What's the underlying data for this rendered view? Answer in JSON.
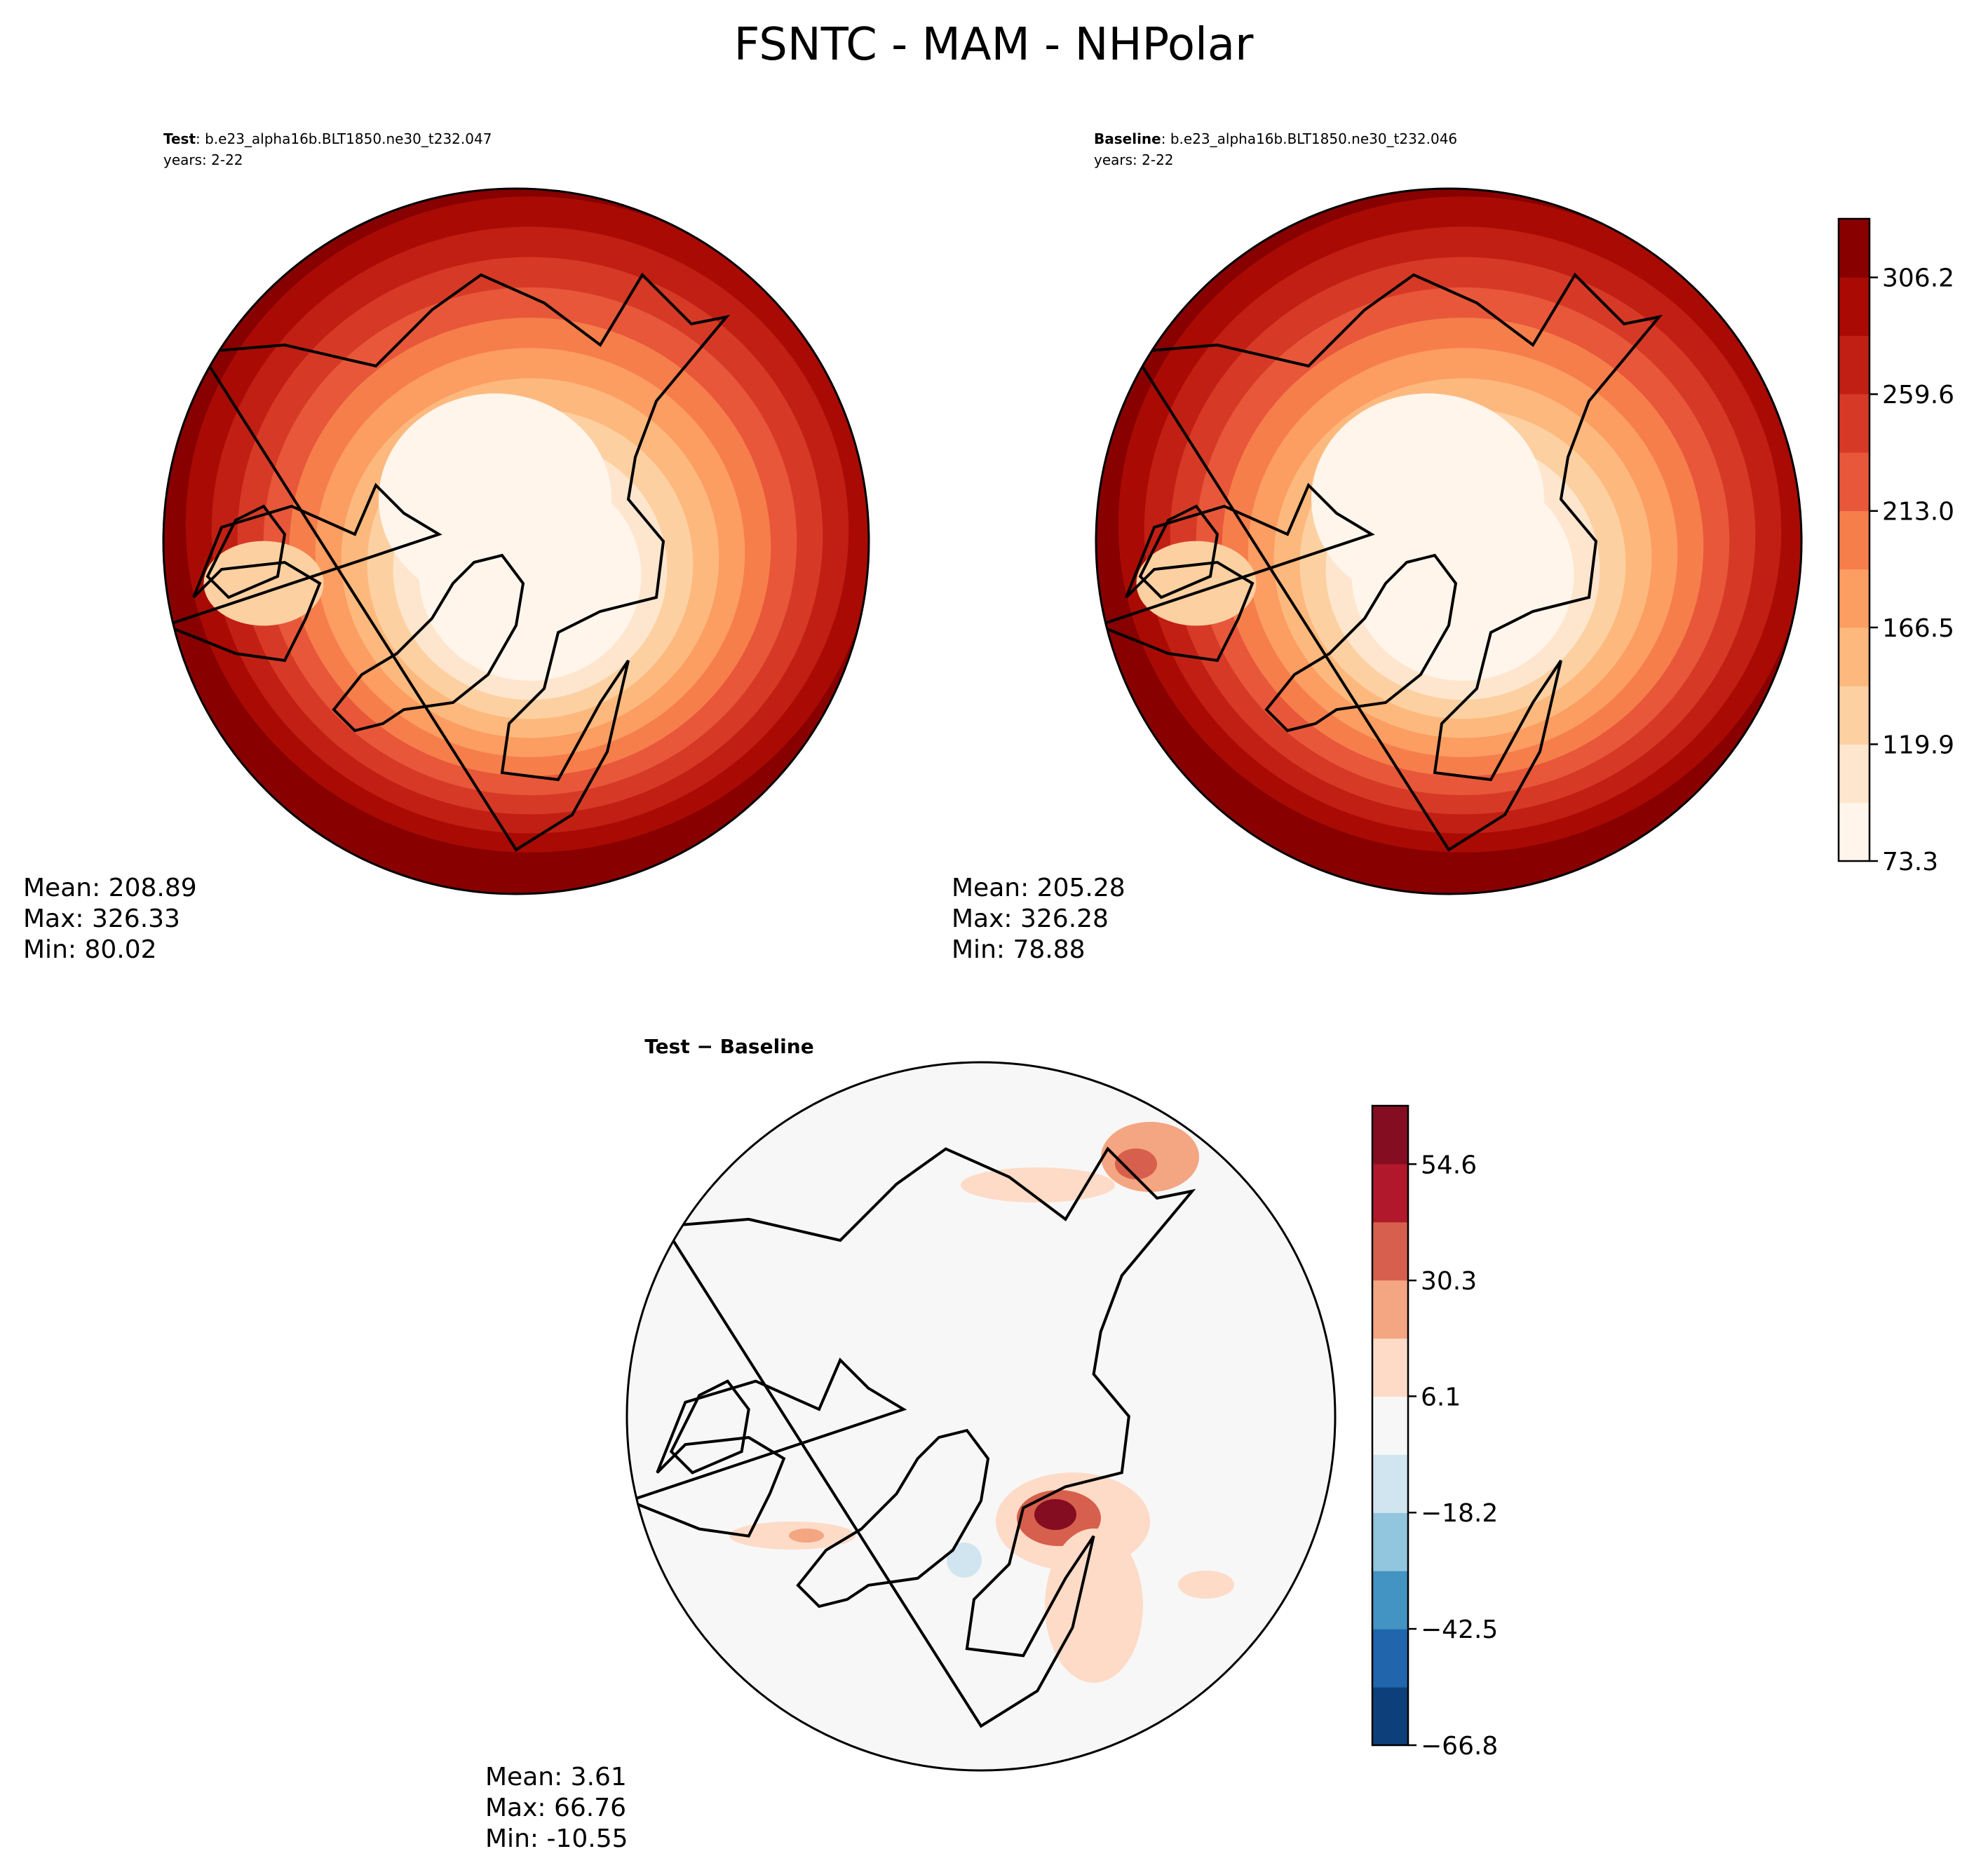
{
  "title": "FSNTC - MAM - NHPolar",
  "panels": [
    {
      "label": "Test",
      "case": ": b.e23_alpha16b.BLT1850.ne30_t232.047",
      "years": "years: 2-22",
      "stats": [
        "Mean: 208.89",
        "Max: 326.33",
        "Min: 80.02"
      ]
    },
    {
      "label": "Baseline",
      "case": ": b.e23_alpha16b.BLT1850.ne30_t232.046",
      "years": "years: 2-22",
      "stats": [
        "Mean: 205.28",
        "Max: 326.28",
        "Min: 78.88"
      ]
    },
    {
      "label": "Test − Baseline",
      "stats": [
        "Mean:  3.61",
        "Max: 66.76",
        "Min: -10.55"
      ]
    }
  ],
  "colorbars": [
    {
      "lim": [
        73.3,
        329.6
      ],
      "ticks": [
        73.3,
        119.9,
        166.5,
        {
          "value": 213.0,
          "label": "213.0"
        },
        259.6,
        306.2
      ],
      "colors": [
        "#fff5eb",
        "#fee6ce",
        "#fdd0a2",
        "#fdb97d",
        "#fc9d62",
        "#f67e4b",
        "#e8573a",
        "#d63a26",
        "#c11f14",
        "#a90b04",
        "#880000"
      ]
    },
    {
      "lim": [
        -66.8,
        66.8
      ],
      "ticks": [
        {
          "value": -66.8,
          "label": "−66.8"
        },
        {
          "value": -42.5,
          "label": "−42.5"
        },
        {
          "value": -18.2,
          "label": "−18.2"
        },
        6.1,
        30.3,
        54.6
      ],
      "colors": [
        "#0d3f7a",
        "#2166ac",
        "#4393c3",
        "#92c5de",
        "#d1e5f0",
        "#f7f7f7",
        "#fddbc7",
        "#f4a582",
        "#d6604d",
        "#b2182b",
        "#840d22"
      ]
    }
  ]
}
